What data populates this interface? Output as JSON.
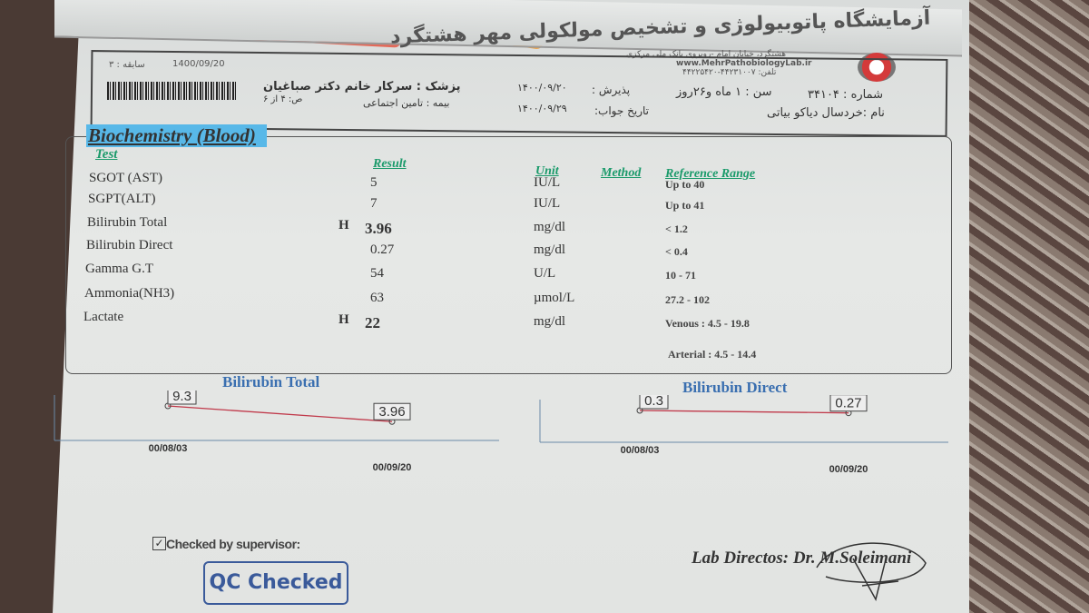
{
  "header": {
    "lab_title": "آزمایشگاه پاتوبیولوژی و تشخیص مولکولی مهر هشتگرد",
    "address": "هشتگرد، خیابان امام -روبروی بانک ملی مرکزی",
    "website": "www.MehrPathobiologyLab.ir",
    "phone": "تلفن: ۴۴۲۳۱۰۰۷-۴۴۲۲۵۴۲۰",
    "number": "شماره : ۳۴۱۰۴",
    "age": "سن : ۱ ماه و۲۶روز",
    "admission_label": "پذیرش :",
    "admission_date": "۱۴۰۰/۰۹/۲۰",
    "answer_label": "تاریخ جواب:",
    "answer_date": "۱۴۰۰/۰۹/۲۹",
    "name": "نام :خردسال دیاکو بیاتی",
    "doctor": "پزشک : سرکار خانم دکتر صباغیان",
    "insurance": "بیمه : تامین اجتماعی",
    "page": "ص: ۴ از ۶",
    "barcode_date": "1400/09/20",
    "history": "سابقه : ۳"
  },
  "section_title": "Biochemistry (Blood)",
  "table": {
    "headers": {
      "test": "Test",
      "result": "Result",
      "unit": "Unit",
      "method": "Method",
      "reference": "Reference Range"
    },
    "rows": [
      {
        "test": "SGOT (AST)",
        "flag": "",
        "result": "5",
        "unit": "IU/L",
        "reference": "Up to 40"
      },
      {
        "test": "SGPT(ALT)",
        "flag": "",
        "result": "7",
        "unit": "IU/L",
        "reference": "Up to 41"
      },
      {
        "test": "Bilirubin Total",
        "flag": "H",
        "result": "3.96",
        "unit": "mg/dl",
        "reference": "< 1.2"
      },
      {
        "test": "Bilirubin Direct",
        "flag": "",
        "result": "0.27",
        "unit": "mg/dl",
        "reference": "< 0.4"
      },
      {
        "test": "Gamma G.T",
        "flag": "",
        "result": "54",
        "unit": "U/L",
        "reference": "10 - 71"
      },
      {
        "test": "Ammonia(NH3)",
        "flag": "",
        "result": "63",
        "unit": "µmol/L",
        "reference": "27.2 - 102"
      },
      {
        "test": "Lactate",
        "flag": "H",
        "result": "22",
        "unit": "mg/dl",
        "reference": "Venous : 4.5 - 19.8"
      }
    ],
    "extra_reference": "Arterial : 4.5 - 14.4"
  },
  "charts": [
    {
      "title": "Bilirubin Total",
      "type": "line",
      "x": [
        "00/08/03",
        "00/09/20"
      ],
      "values": [
        9.3,
        3.96
      ],
      "labels": [
        "9.3",
        "3.96"
      ],
      "line_color": "#c0394a"
    },
    {
      "title": "Bilirubin Direct",
      "type": "line",
      "x": [
        "00/08/03",
        "00/09/20"
      ],
      "values": [
        0.3,
        0.27
      ],
      "labels": [
        "0.3",
        "0.27"
      ],
      "line_color": "#c0394a"
    }
  ],
  "footer": {
    "checked": "Checked by supervisor:",
    "qc": "QC Checked",
    "director": "Lab Directos: Dr. M.Soleimani"
  }
}
